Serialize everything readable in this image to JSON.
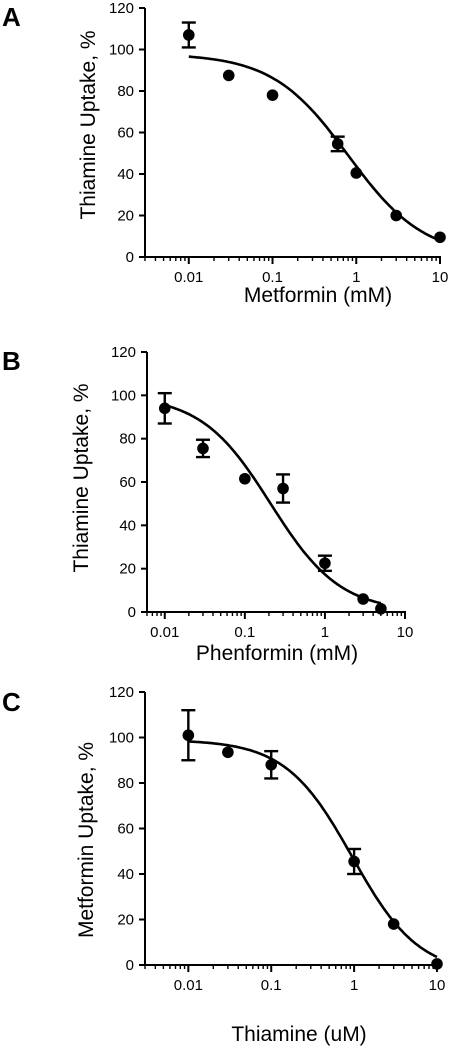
{
  "figure": {
    "panels": [
      {
        "letter": "A",
        "ylabel": "Thiamine Uptake, %",
        "xlabel": "Metformin (mM)"
      },
      {
        "letter": "B",
        "ylabel": "Thiamine Uptake, %",
        "xlabel": "Phenformin (mM)"
      },
      {
        "letter": "C",
        "ylabel": "Metformin Uptake, %",
        "xlabel": "Thiamine (uM)"
      }
    ]
  },
  "chart_data": [
    {
      "type": "scatter",
      "panel": "A",
      "xlabel": "Metformin (mM)",
      "ylabel": "Thiamine Uptake, %",
      "xscale": "log",
      "xlim": [
        0.003,
        10
      ],
      "ylim": [
        0,
        120
      ],
      "xticks": [
        0.01,
        0.1,
        1,
        10
      ],
      "xtick_labels": [
        "0.01",
        "0.1",
        "1",
        "10"
      ],
      "yticks": [
        0,
        20,
        40,
        60,
        80,
        100,
        120
      ],
      "ytick_labels": [
        "0",
        "20",
        "40",
        "60",
        "80",
        "100",
        "120"
      ],
      "grid": false,
      "x": [
        0.01,
        0.03,
        0.1,
        0.6,
        1.0,
        3.0,
        10
      ],
      "y": [
        107,
        87.5,
        78,
        54.5,
        40.5,
        20,
        9.5
      ],
      "error": [
        6,
        0,
        0,
        3.5,
        0,
        0,
        0
      ],
      "fit": {
        "type": "sigmoid",
        "top": 98,
        "bottom": 0,
        "ic50": 0.8,
        "hill": 0.96
      }
    },
    {
      "type": "scatter",
      "panel": "B",
      "xlabel": "Phenformin (mM)",
      "ylabel": "Thiamine Uptake, %",
      "xscale": "log",
      "xlim": [
        0.006,
        10
      ],
      "ylim": [
        0,
        120
      ],
      "xticks": [
        0.01,
        0.1,
        1,
        10
      ],
      "xtick_labels": [
        "0.01",
        "0.1",
        "1",
        "10"
      ],
      "yticks": [
        0,
        20,
        40,
        60,
        80,
        100,
        120
      ],
      "ytick_labels": [
        "0",
        "20",
        "40",
        "60",
        "80",
        "100",
        "120"
      ],
      "grid": false,
      "x": [
        0.01,
        0.03,
        0.1,
        0.3,
        1.0,
        3.0,
        5.0
      ],
      "y": [
        94,
        75.5,
        61.5,
        57,
        22.5,
        6,
        1.5
      ],
      "error": [
        7,
        4,
        0,
        6.5,
        3.5,
        0,
        0
      ],
      "fit": {
        "type": "sigmoid",
        "top": 100,
        "bottom": 0,
        "ic50": 0.21,
        "hill": 1.0,
        "x_end": 5
      }
    },
    {
      "type": "scatter",
      "panel": "C",
      "xlabel": "Thiamine (uM)",
      "ylabel": "Metformin Uptake, %",
      "xscale": "log",
      "xlim": [
        0.003,
        10
      ],
      "ylim": [
        0,
        120
      ],
      "xticks": [
        0.01,
        0.1,
        1,
        10
      ],
      "xtick_labels": [
        "0.01",
        "0.1",
        "1",
        "10"
      ],
      "yticks": [
        0,
        20,
        40,
        60,
        80,
        100,
        120
      ],
      "ytick_labels": [
        "0",
        "20",
        "40",
        "60",
        "80",
        "100",
        "120"
      ],
      "grid": false,
      "x": [
        0.01,
        0.03,
        0.1,
        1.0,
        3.0,
        10
      ],
      "y": [
        101,
        93.5,
        88,
        45.5,
        18,
        0.5
      ],
      "error": [
        11,
        0,
        6,
        5.5,
        0,
        0
      ],
      "fit": {
        "type": "sigmoid",
        "top": 99,
        "bottom": -4,
        "ic50": 0.95,
        "hill": 1.08
      }
    }
  ]
}
